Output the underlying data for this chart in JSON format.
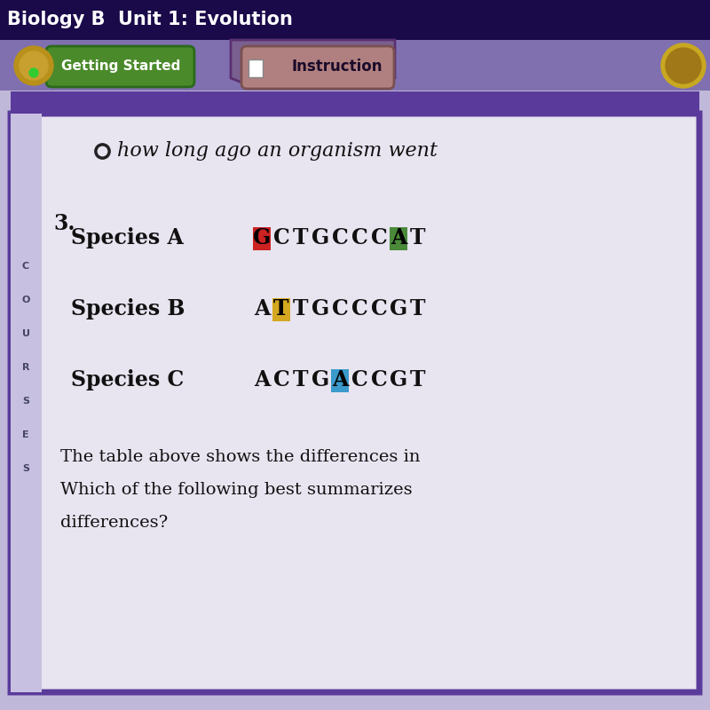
{
  "bg_outer": "#c0b8d8",
  "bg_top": "#2a1a5a",
  "bg_nav": "#7a6aaa",
  "panel_bg": "#e8e4f0",
  "panel_border": "#5a3a9a",
  "title_text": "Biology B  Unit 1: Evolution",
  "radio_text": "how long ago an organism went",
  "question_number": "3.",
  "gs_btn_color": "#4a8a2a",
  "gs_btn_text": "Getting Started",
  "inst_btn_color": "#b08080",
  "inst_btn_text": "Instruction",
  "species": [
    {
      "label": "Species A",
      "sequence": [
        "G",
        "C",
        "T",
        "G",
        "C",
        "C",
        "C",
        "A",
        "T"
      ],
      "highlights": [
        {
          "index": 0,
          "bg": "#cc2222",
          "fg": "#000000"
        },
        {
          "index": 7,
          "bg": "#4a8a3a",
          "fg": "#000000"
        }
      ]
    },
    {
      "label": "Species B",
      "sequence": [
        "A",
        "T",
        "T",
        "G",
        "C",
        "C",
        "C",
        "G",
        "T"
      ],
      "highlights": [
        {
          "index": 1,
          "bg": "#d4a820",
          "fg": "#000000"
        }
      ]
    },
    {
      "label": "Species C",
      "sequence": [
        "A",
        "C",
        "T",
        "G",
        "A",
        "C",
        "C",
        "G",
        "T"
      ],
      "highlights": [
        {
          "index": 4,
          "bg": "#3a9acc",
          "fg": "#000000"
        }
      ]
    }
  ],
  "bottom_text_line1": "The table above shows the differences in",
  "bottom_text_line2": "Which of the following best summarizes",
  "bottom_text_line3": "differences?",
  "sidebar_letters": [
    "C",
    "O",
    "U",
    "R",
    "S",
    "E",
    "S"
  ]
}
